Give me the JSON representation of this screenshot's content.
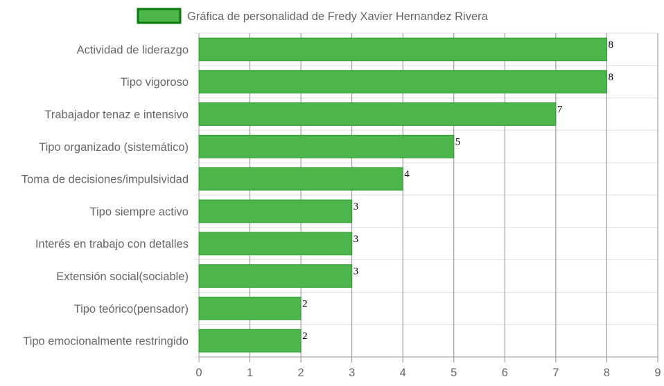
{
  "chart_data": {
    "type": "bar",
    "orientation": "horizontal",
    "categories": [
      "Actividad de liderazgo",
      "Tipo vigoroso",
      "Trabajador tenaz e intensivo",
      "Tipo organizado (sistemático)",
      "Toma de decisiones/impulsividad",
      "Tipo siempre activo",
      "Interés en trabajo con detalles",
      "Extensión social(sociable)",
      "Tipo teórico(pensador)",
      "Tipo emocionalmente restringido"
    ],
    "series": [
      {
        "name": "Gráfica de personalidad de Fredy Xavier Hernandez Rivera",
        "values": [
          8,
          8,
          7,
          5,
          4,
          3,
          3,
          3,
          2,
          2
        ]
      }
    ],
    "xlim": [
      0,
      9
    ],
    "x_ticks": [
      0,
      1,
      2,
      3,
      4,
      5,
      6,
      7,
      8,
      9
    ],
    "grid": true,
    "legend": "top-center",
    "data_labels": true,
    "colors": {
      "bar_fill": "#4cb64c",
      "bar_border": "#2e9a2e",
      "legend_fill": "#4cb64c",
      "legend_border": "#0a7a0a",
      "grid": "#e0e0e0",
      "grid_vertical": "#8c8c8c",
      "text": "#666666"
    }
  }
}
